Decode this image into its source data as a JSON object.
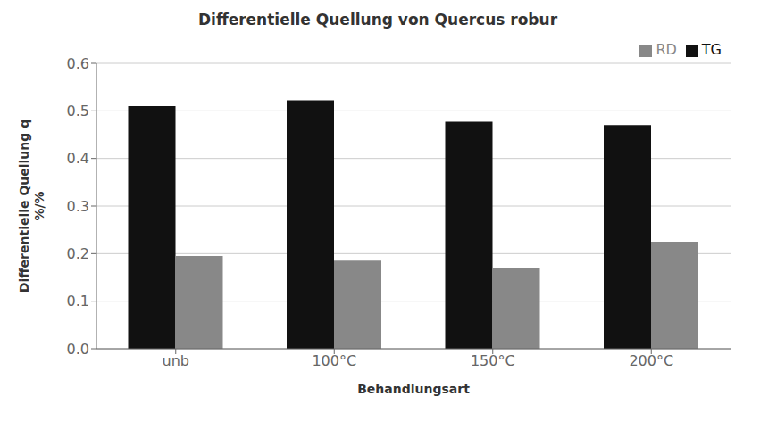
{
  "chart_data": {
    "type": "bar",
    "title": "Differentielle Quellung von Quercus robur",
    "xlabel": "Behandlungsart",
    "ylabel": "Differentielle Quellung q\n%/%",
    "categories": [
      "unb",
      "100°C",
      "150°C",
      "200°C"
    ],
    "series": [
      {
        "name": "TG",
        "color": "#111111",
        "values": [
          0.51,
          0.522,
          0.477,
          0.47
        ]
      },
      {
        "name": "RD",
        "color": "#888888",
        "values": [
          0.195,
          0.185,
          0.17,
          0.225
        ]
      }
    ],
    "ylim": [
      0.0,
      0.6
    ],
    "yticks": [
      {
        "value": 0.0,
        "label": "0.0"
      },
      0.1,
      0.2,
      0.3,
      0.4,
      0.5,
      0.6
    ],
    "grid": true,
    "legend": "upper right"
  }
}
